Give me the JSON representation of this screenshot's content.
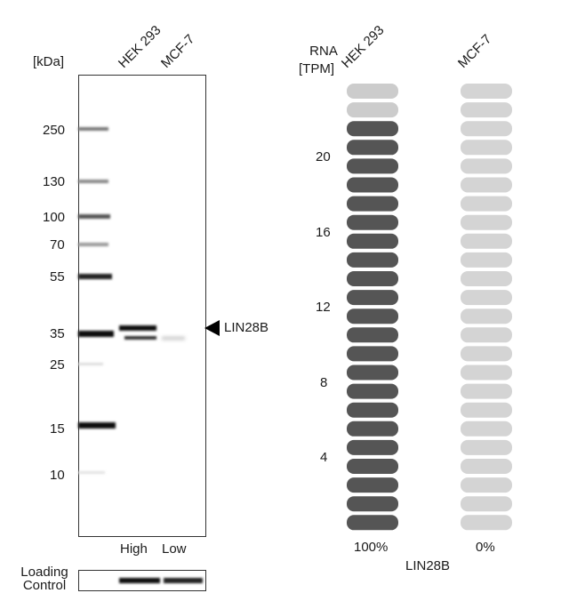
{
  "western_blot": {
    "unit_label": "[kDa]",
    "lanes": [
      "HEK 293",
      "MCF-7"
    ],
    "markers": [
      "250",
      "130",
      "100",
      "70",
      "55",
      "35",
      "25",
      "15",
      "10"
    ],
    "target_label": "LIN28B",
    "expression_labels": [
      "High",
      "Low"
    ],
    "loading_control_label": "Loading Control"
  },
  "rna_panel": {
    "header_line1": "RNA",
    "header_line2": "[TPM]",
    "columns": [
      "HEK 293",
      "MCF-7"
    ],
    "y_ticks": [
      "20",
      "16",
      "12",
      "8",
      "4"
    ],
    "percentages": [
      "100%",
      "0%"
    ],
    "gene_label": "LIN28B",
    "colors": {
      "filled": "#555555",
      "partial": "#cccccc",
      "empty": "#d4d4d4"
    }
  },
  "chart_data": {
    "type": "bar",
    "categories": [
      "HEK 293",
      "MCF-7"
    ],
    "series": [
      {
        "values": [
          0.9,
          0.0
        ]
      }
    ],
    "ylabel": "RNA [TPM]",
    "y_ticks": [
      4,
      8,
      12,
      16,
      20
    ],
    "ylim": [
      0,
      23
    ],
    "segments_per_column": 24,
    "relative_percent": [
      100,
      0
    ]
  }
}
